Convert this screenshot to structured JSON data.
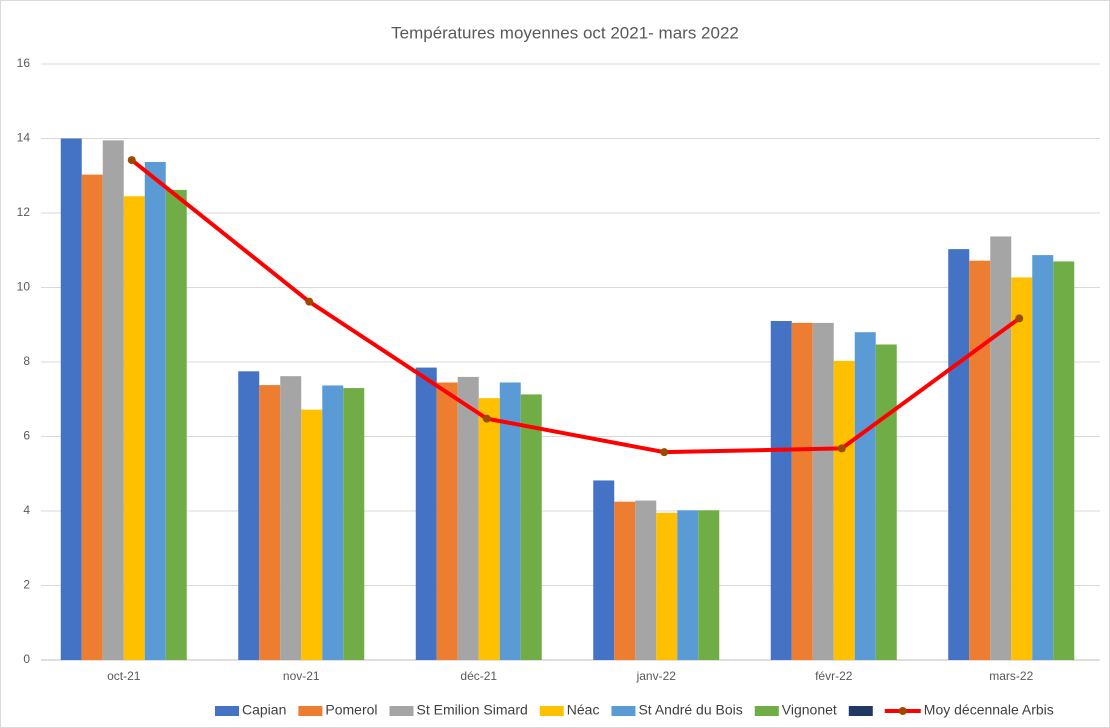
{
  "chart_data": {
    "type": "bar",
    "title": "Températures moyennes oct 2021- mars 2022",
    "categories": [
      "oct-21",
      "nov-21",
      "déc-21",
      "janv-22",
      "févr-22",
      "mars-22"
    ],
    "series": [
      {
        "name": "Capian",
        "color": "#4472c4",
        "values": [
          14.0,
          7.75,
          7.85,
          4.82,
          9.1,
          11.03
        ]
      },
      {
        "name": "Pomerol",
        "color": "#ed7d31",
        "values": [
          13.03,
          7.38,
          7.45,
          4.25,
          9.05,
          10.72
        ]
      },
      {
        "name": "St Emilion Simard",
        "color": "#a5a5a5",
        "values": [
          13.95,
          7.62,
          7.6,
          4.28,
          9.05,
          11.37
        ]
      },
      {
        "name": "Néac",
        "color": "#ffc000",
        "values": [
          12.45,
          6.72,
          7.03,
          3.95,
          8.03,
          10.27
        ]
      },
      {
        "name": "St André du Bois",
        "color": "#5b9bd5",
        "values": [
          13.37,
          7.37,
          7.45,
          4.02,
          8.8,
          10.87
        ]
      },
      {
        "name": "Vignonet",
        "color": "#70ad47",
        "values": [
          12.62,
          7.3,
          7.13,
          4.02,
          8.47,
          10.7
        ]
      },
      {
        "name": "Moy décennale Arbis",
        "color": "#ff0000",
        "type": "line",
        "values": [
          13.42,
          9.62,
          6.48,
          5.58,
          5.68,
          9.17
        ]
      }
    ],
    "ylim": [
      0,
      16
    ],
    "yticks": [
      0,
      2,
      4,
      6,
      8,
      10,
      12,
      14,
      16
    ],
    "grid": true,
    "legend": "bottom"
  }
}
